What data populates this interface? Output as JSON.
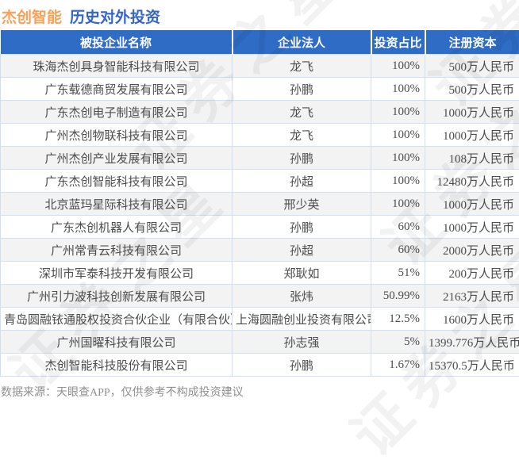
{
  "title": {
    "company": "杰创智能",
    "section": "历史对外投资"
  },
  "colors": {
    "title_company": "#f9a158",
    "title_section": "#3566c5",
    "header_bg": "#2e6cc6",
    "header_text": "#ffffff",
    "row_alt_bg": "#f3f3f3",
    "cell_border": "#cfe0f2",
    "body_text": "#4c4c4c",
    "footer_text": "#8f8f8f"
  },
  "watermark": {
    "text": "证券之星"
  },
  "table": {
    "headers": [
      "被投企业名称",
      "企业法人",
      "投资占比",
      "注册资本"
    ],
    "rows": [
      {
        "company": "珠海杰创具身智能科技有限公司",
        "legal_person": "龙飞",
        "ratio": "100%",
        "registered_capital": "500万人民币"
      },
      {
        "company": "广东载德商贸发展有限公司",
        "legal_person": "孙鹏",
        "ratio": "100%",
        "registered_capital": "500万人民币"
      },
      {
        "company": "广东杰创电子制造有限公司",
        "legal_person": "龙飞",
        "ratio": "100%",
        "registered_capital": "1000万人民币"
      },
      {
        "company": "广州杰创物联科技有限公司",
        "legal_person": "龙飞",
        "ratio": "100%",
        "registered_capital": "1000万人民币"
      },
      {
        "company": "广州杰创产业发展有限公司",
        "legal_person": "孙鹏",
        "ratio": "100%",
        "registered_capital": "108万人民币"
      },
      {
        "company": "广东杰创智能科技有限公司",
        "legal_person": "孙超",
        "ratio": "100%",
        "registered_capital": "12480万人民币"
      },
      {
        "company": "北京蓝玛星际科技有限公司",
        "legal_person": "邢少英",
        "ratio": "100%",
        "registered_capital": "1000万人民币"
      },
      {
        "company": "广东杰创机器人有限公司",
        "legal_person": "孙鹏",
        "ratio": "60%",
        "registered_capital": "1000万人民币"
      },
      {
        "company": "广州常青云科技有限公司",
        "legal_person": "孙超",
        "ratio": "60%",
        "registered_capital": "2000万人民币"
      },
      {
        "company": "深圳市军泰科技开发有限公司",
        "legal_person": "郑耿如",
        "ratio": "51%",
        "registered_capital": "200万人民币"
      },
      {
        "company": "广州引力波科技创新发展有限公司",
        "legal_person": "张炜",
        "ratio": "50.99%",
        "registered_capital": "2163万人民币"
      },
      {
        "company": "青岛圆融铱通股权投资合伙企业（有限合伙）",
        "legal_person": "上海圆融创业投资有限公司",
        "ratio": "12.5%",
        "registered_capital": "1600万人民币"
      },
      {
        "company": "广州国曜科技有限公司",
        "legal_person": "孙志强",
        "ratio": "5%",
        "registered_capital": "1399.776万人民币"
      },
      {
        "company": "杰创智能科技股份有限公司",
        "legal_person": "孙鹏",
        "ratio": "1.67%",
        "registered_capital": "15370.5万人民币"
      }
    ]
  },
  "footer": {
    "note": "数据来源：天眼查APP，仅供参考不构成投资建议"
  }
}
